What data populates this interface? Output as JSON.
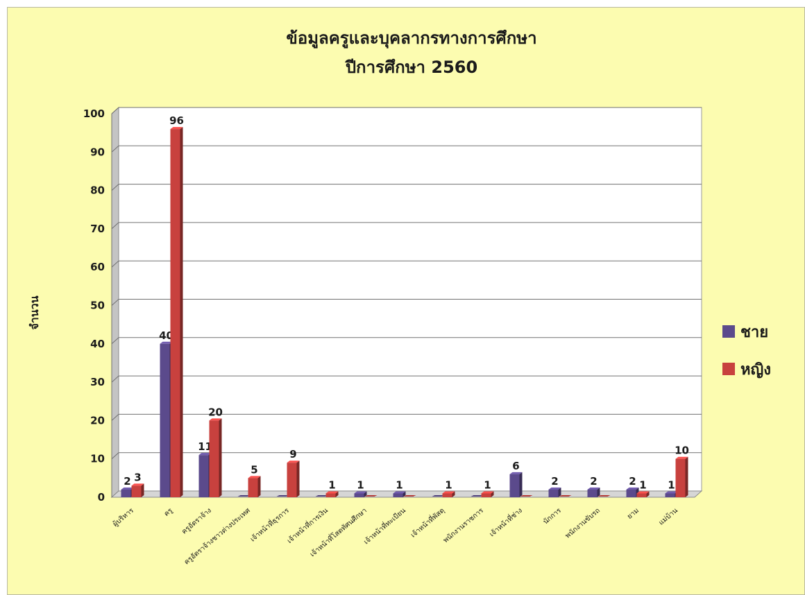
{
  "chart_data": {
    "type": "bar",
    "title": "ข้อมูลครูและบุคลากรทางการศึกษา",
    "subtitle": "ปีการศึกษา 2560",
    "xlabel": "",
    "ylabel": "จำนวน",
    "ylim": [
      0,
      100
    ],
    "yticks": [
      0,
      10,
      20,
      30,
      40,
      50,
      60,
      70,
      80,
      90,
      100
    ],
    "grid": true,
    "legend_position": "right",
    "categories": [
      "ผู้บริหาร",
      "ครู",
      "ครูอัตราจ้าง",
      "ครูอัตราจ้างชาวต่างประเทศ",
      "เจ้าหน้าที่ธุรการ",
      "เจ้าหน้าที่การเงิน",
      "เจ้าหน้าที่โสตทัศนศึกษา",
      "เจ้าหน้าที่ทะเบียน",
      "เจ้าหน้าที่พัสดุ",
      "พนักงานราชการ",
      "เจ้าหน้าที่ช่าง",
      "นักการ",
      "พนักงานขับรถ",
      "ยาม",
      "แม่บ้าน"
    ],
    "series": [
      {
        "name": "ชาย",
        "color": "#5b4a8c",
        "values": [
          2,
          40,
          11,
          0,
          0,
          0,
          1,
          1,
          0,
          0,
          6,
          2,
          2,
          2,
          1
        ],
        "labels": [
          "2",
          "40",
          "11",
          "",
          "",
          "",
          "1",
          "1",
          "",
          "",
          "6",
          "2",
          "2",
          "2",
          "1"
        ]
      },
      {
        "name": "หญิง",
        "color": "#c8413e",
        "values": [
          3,
          96,
          20,
          5,
          9,
          1,
          0,
          0,
          1,
          1,
          0,
          0,
          0,
          1,
          10
        ],
        "labels": [
          "3",
          "96",
          "20",
          "5",
          "9",
          "1",
          "",
          "",
          "1",
          "1",
          "",
          "",
          "",
          "1",
          "10"
        ]
      }
    ]
  }
}
